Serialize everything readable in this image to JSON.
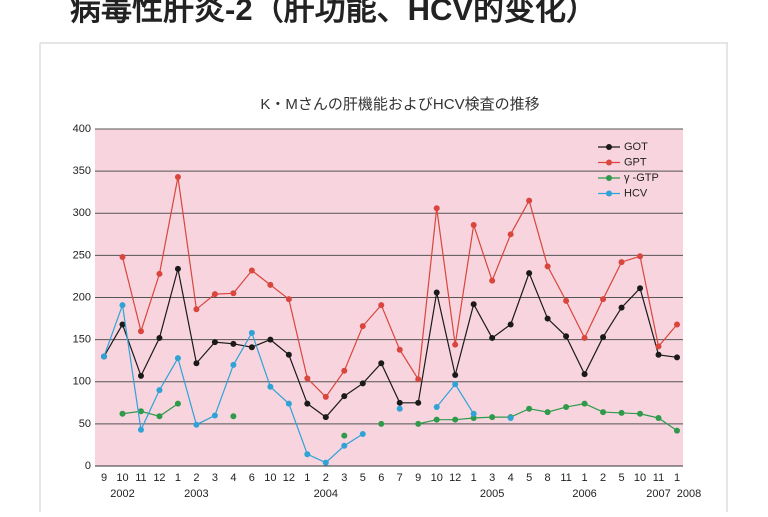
{
  "header": {
    "title": "病毒性肝炎-2（肝功能、HCV的变化）"
  },
  "chart_data": {
    "type": "line",
    "title": "K・Mさんの肝機能およびHCV検査の推移",
    "categories": [
      "9",
      "10",
      "11",
      "12",
      "1",
      "2",
      "3",
      "4",
      "6",
      "10",
      "12",
      "1",
      "2",
      "3",
      "5",
      "6",
      "7",
      "9",
      "10",
      "12",
      "1",
      "3",
      "4",
      "5",
      "8",
      "11",
      "1",
      "2",
      "5",
      "10",
      "11",
      "1"
    ],
    "category_groups": [
      null,
      "2002",
      null,
      null,
      null,
      "2003",
      null,
      null,
      null,
      null,
      null,
      null,
      "2004",
      null,
      null,
      null,
      null,
      null,
      null,
      null,
      null,
      "2005",
      null,
      null,
      null,
      null,
      "2006",
      null,
      null,
      null,
      "2007",
      "2008"
    ],
    "series": [
      {
        "name": "GOT",
        "color": "#1a1a1a",
        "values": [
          130,
          168,
          107,
          152,
          234,
          122,
          147,
          145,
          141,
          150,
          132,
          74,
          58,
          83,
          98,
          122,
          75,
          75,
          206,
          108,
          192,
          152,
          168,
          229,
          175,
          154,
          109,
          153,
          188,
          211,
          132,
          129
        ]
      },
      {
        "name": "GPT",
        "color": "#d9463c",
        "values": [
          null,
          248,
          160,
          228,
          343,
          186,
          204,
          205,
          232,
          215,
          198,
          104,
          82,
          113,
          166,
          191,
          138,
          103,
          306,
          144,
          286,
          220,
          275,
          315,
          237,
          196,
          152,
          198,
          242,
          249,
          142,
          168
        ]
      },
      {
        "name": "γ -GTP",
        "color": "#2e9a4a",
        "values": [
          null,
          62,
          65,
          59,
          74,
          null,
          null,
          59,
          null,
          null,
          null,
          null,
          null,
          36,
          null,
          50,
          null,
          50,
          55,
          55,
          57,
          58,
          58,
          68,
          64,
          70,
          74,
          64,
          63,
          62,
          57,
          42
        ]
      },
      {
        "name": "HCV",
        "color": "#2fa3d6",
        "values": [
          130,
          191,
          43,
          90,
          128,
          49,
          60,
          120,
          158,
          94,
          74,
          14,
          4,
          24,
          38,
          null,
          68,
          null,
          70,
          97,
          62,
          null,
          57,
          null,
          null,
          null,
          null,
          null,
          null,
          null,
          null,
          null
        ]
      }
    ],
    "ylim": [
      0,
      400
    ],
    "yticks": [
      0,
      50,
      100,
      150,
      200,
      250,
      300,
      350,
      400
    ],
    "grid": true,
    "legend": "upper right"
  }
}
